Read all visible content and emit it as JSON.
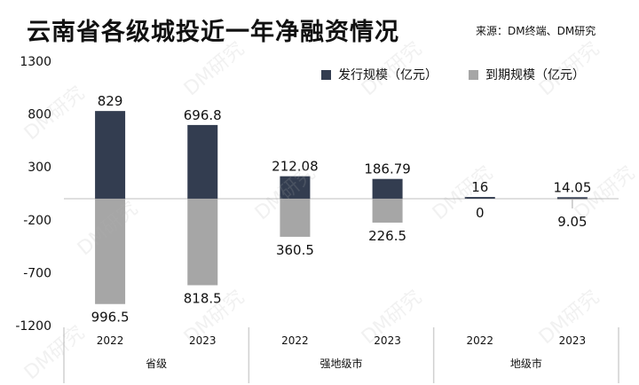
{
  "title": "云南省各级城投近一年净融资情况",
  "source": "来源：DM终端、DM研究",
  "watermark": "DM研究",
  "colors": {
    "issuance": "#333d50",
    "maturity": "#a6a6a6"
  },
  "chart_data": {
    "type": "bar",
    "title": "云南省各级城投近一年净融资情况",
    "groups": [
      "省级",
      "强地级市",
      "地级市"
    ],
    "categories": [
      "2022",
      "2023",
      "2022",
      "2023",
      "2022",
      "2023"
    ],
    "series": [
      {
        "name": "发行规模（亿元）",
        "values": [
          829,
          696.8,
          212.08,
          186.79,
          16,
          14.05
        ],
        "labels": [
          "829",
          "696.8",
          "212.08",
          "186.79",
          "16",
          "14.05"
        ]
      },
      {
        "name": "到期规模（亿元）",
        "values": [
          -996.5,
          -818.5,
          -360.5,
          -226.5,
          0,
          -9.05
        ],
        "labels": [
          "996.5",
          "818.5",
          "360.5",
          "226.5",
          "0",
          "9.05"
        ]
      }
    ],
    "yticks": [
      "1300",
      "800",
      "300",
      "-200",
      "-700",
      "-1200"
    ],
    "ytick_values": [
      1300,
      800,
      300,
      -200,
      -700,
      -1200
    ],
    "ylim": [
      -1200,
      1300
    ],
    "legend": "top-right",
    "grid": false
  }
}
